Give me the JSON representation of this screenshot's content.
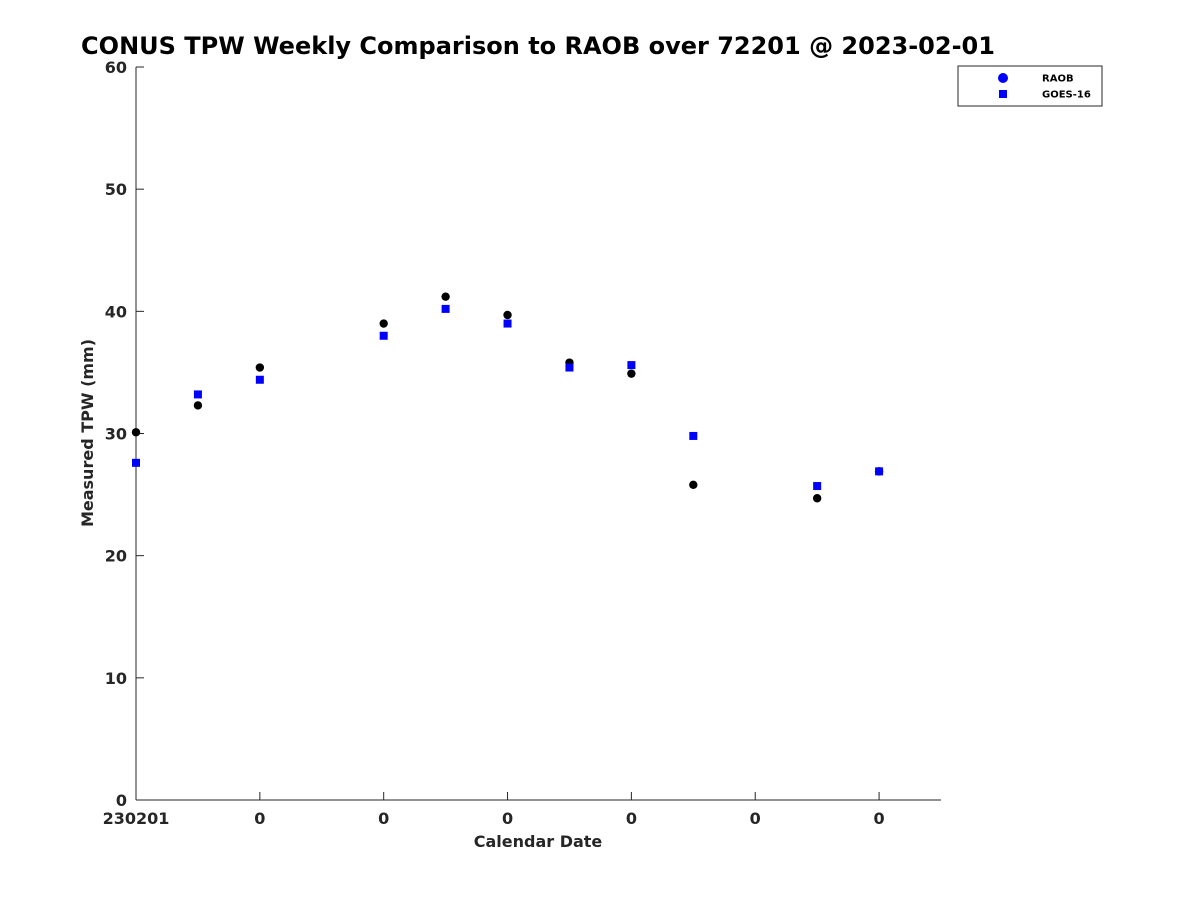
{
  "chart_data": {
    "type": "scatter",
    "title": "CONUS TPW Weekly Comparison to RAOB over 72201 @ 2023-02-01",
    "xlabel": "Calendar Date",
    "ylabel": "Measured TPW (mm)",
    "xlim": [
      0,
      13
    ],
    "ylim": [
      0,
      60
    ],
    "xticks": [
      0,
      2,
      4,
      6,
      8,
      10,
      12
    ],
    "xtick_labels": [
      "230201",
      "0",
      "0",
      "0",
      "0",
      "0",
      "0"
    ],
    "yticks": [
      0,
      10,
      20,
      30,
      40,
      50,
      60
    ],
    "ytick_labels": [
      "0",
      "10",
      "20",
      "30",
      "40",
      "50",
      "60"
    ],
    "grid": false,
    "legend_position": "top-right",
    "colors": {
      "raob": "#000000",
      "raob_legend": "#0000ff",
      "goes": "#0000ff",
      "axis": "#262626"
    },
    "series": [
      {
        "name": "RAOB",
        "marker": "circle",
        "x": [
          0,
          1,
          2,
          4,
          5,
          6,
          7,
          8,
          9,
          11,
          12
        ],
        "y": [
          30.1,
          32.3,
          35.4,
          39.0,
          41.2,
          39.7,
          35.8,
          34.9,
          25.8,
          24.7,
          26.9
        ]
      },
      {
        "name": "GOES-16",
        "marker": "square",
        "x": [
          0,
          1,
          2,
          4,
          5,
          6,
          7,
          8,
          9,
          11,
          12
        ],
        "y": [
          27.6,
          33.2,
          34.4,
          38.0,
          40.2,
          39.0,
          35.4,
          35.6,
          29.8,
          25.7,
          26.9
        ]
      }
    ]
  }
}
